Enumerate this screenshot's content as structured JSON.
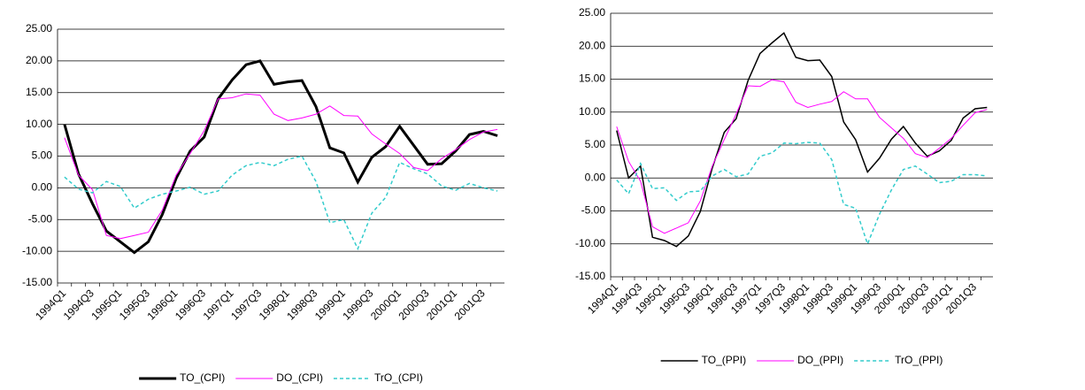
{
  "chart_data": [
    {
      "type": "line",
      "categories": [
        "1994Q1",
        null,
        "1994Q3",
        null,
        "1995Q1",
        null,
        "1995Q3",
        null,
        "1996Q1",
        null,
        "1996Q3",
        null,
        "1997Q1",
        null,
        "1997Q3",
        null,
        "1998Q1",
        null,
        "1998Q3",
        null,
        "1999Q1",
        null,
        "1999Q3",
        null,
        "2000Q1",
        null,
        "2000Q3",
        null,
        "2001Q1",
        null,
        "2001Q3",
        null
      ],
      "ylim": [
        -15,
        25
      ],
      "yticks": [
        {
          "value": -15,
          "label": "-15.00"
        },
        {
          "value": -10,
          "label": "-10.00"
        },
        {
          "value": -5,
          "label": "-5.00"
        },
        {
          "value": 0,
          "label": "0.00"
        },
        {
          "value": 5,
          "label": "5.00"
        },
        {
          "value": 10,
          "label": "10.00"
        },
        {
          "value": 15,
          "label": "15.00"
        },
        {
          "value": 20,
          "label": "20.00"
        },
        {
          "value": 25,
          "label": "25.00"
        }
      ],
      "grid": true,
      "legend": "bottom",
      "series": [
        {
          "name": "TO_(CPI)",
          "color": "#000000",
          "line_width": 3,
          "dashed": false,
          "values": [
            10,
            2.2,
            -2.5,
            -6.8,
            -8.5,
            -10.2,
            -8.5,
            -4.2,
            1.5,
            5.8,
            8,
            14,
            17,
            19.4,
            20,
            16.3,
            16.7,
            16.9,
            12.8,
            6.3,
            5.5,
            0.9,
            4.8,
            6.5,
            9.7,
            6.7,
            3.7,
            3.8,
            5.8,
            8.4,
            8.9,
            8.2
          ]
        },
        {
          "name": "DO_(CPI)",
          "color": "#ff00ff",
          "line_width": 1,
          "dashed": false,
          "values": [
            7.9,
            2,
            -0.3,
            -7.5,
            -8,
            -7.5,
            -7,
            -3.5,
            2,
            5.4,
            9,
            14,
            14.2,
            14.8,
            14.6,
            11.6,
            10.6,
            11,
            11.6,
            12.9,
            11.4,
            11.3,
            8.5,
            6.9,
            5.4,
            3.2,
            2.7,
            4.6,
            6,
            7.6,
            8.8,
            9.2
          ]
        },
        {
          "name": "TrO_(CPI)",
          "color": "#33cccc",
          "line_width": 1.5,
          "dashed": true,
          "values": [
            1.7,
            -0.2,
            -0.8,
            1,
            0.2,
            -3.2,
            -1.8,
            -1,
            -0.5,
            0.1,
            -1,
            -0.5,
            2,
            3.5,
            4,
            3.5,
            4.5,
            5,
            1,
            -5.5,
            -5,
            -9.6,
            -4,
            -1.5,
            4,
            3,
            2.2,
            0.3,
            -0.4,
            0.7,
            0,
            -0.5
          ]
        }
      ]
    },
    {
      "type": "line",
      "categories": [
        "1994Q1",
        null,
        "1994Q3",
        null,
        "1995Q1",
        null,
        "1995Q3",
        null,
        "1996Q1",
        null,
        "1996Q3",
        null,
        "1997Q1",
        null,
        "1997Q3",
        null,
        "1998Q1",
        null,
        "1998Q3",
        null,
        "1999Q1",
        null,
        "1999Q3",
        null,
        "2000Q1",
        null,
        "2000Q3",
        null,
        "2001Q1",
        null,
        "2001Q3",
        null
      ],
      "ylim": [
        -15,
        25
      ],
      "yticks": [
        {
          "value": -15,
          "label": "-15.00"
        },
        {
          "value": -10,
          "label": "-10.00"
        },
        {
          "value": -5,
          "label": "-5.00"
        },
        {
          "value": 0,
          "label": "0.00"
        },
        {
          "value": 5,
          "label": "5.00"
        },
        {
          "value": 10,
          "label": "10.00"
        },
        {
          "value": 15,
          "label": "15.00"
        },
        {
          "value": 20,
          "label": "20.00"
        },
        {
          "value": 25,
          "label": "25.00"
        }
      ],
      "grid": true,
      "legend": "bottom",
      "series": [
        {
          "name": "TO_(PPI)",
          "color": "#000000",
          "line_width": 1.5,
          "dashed": false,
          "values": [
            7.2,
            0,
            1.8,
            -9,
            -9.5,
            -10.4,
            -8.8,
            -5.1,
            1.5,
            6.9,
            9,
            14.8,
            18.9,
            20.5,
            22,
            18.3,
            17.8,
            17.9,
            15.4,
            8.5,
            5.8,
            0.9,
            3,
            5.9,
            7.8,
            5.3,
            3.3,
            4.1,
            5.7,
            9.1,
            10.5,
            10.7
          ]
        },
        {
          "name": "DO_(PPI)",
          "color": "#ff00ff",
          "line_width": 1,
          "dashed": false,
          "values": [
            7.8,
            2.5,
            -0.5,
            -7.4,
            -8.4,
            -7.6,
            -6.8,
            -3.5,
            1.8,
            5.8,
            9.7,
            14,
            13.9,
            14.9,
            14.6,
            11.5,
            10.7,
            11.2,
            11.6,
            13.1,
            12,
            12,
            9.2,
            7.6,
            6,
            3.7,
            3.1,
            4.5,
            6,
            8,
            9.9,
            10.4
          ]
        },
        {
          "name": "TrO_(PPI)",
          "color": "#33cccc",
          "line_width": 1.5,
          "dashed": true,
          "values": [
            -0.3,
            -2.4,
            2.2,
            -1.6,
            -1.5,
            -3.4,
            -2.1,
            -2,
            0.3,
            1.3,
            0.2,
            0.6,
            3.3,
            3.8,
            5.3,
            5.2,
            5.4,
            5.3,
            2.8,
            -4,
            -4.6,
            -10,
            -5.5,
            -1.8,
            1.3,
            1.8,
            0.6,
            -0.7,
            -0.5,
            0.5,
            0.5,
            0.3
          ]
        }
      ]
    }
  ]
}
